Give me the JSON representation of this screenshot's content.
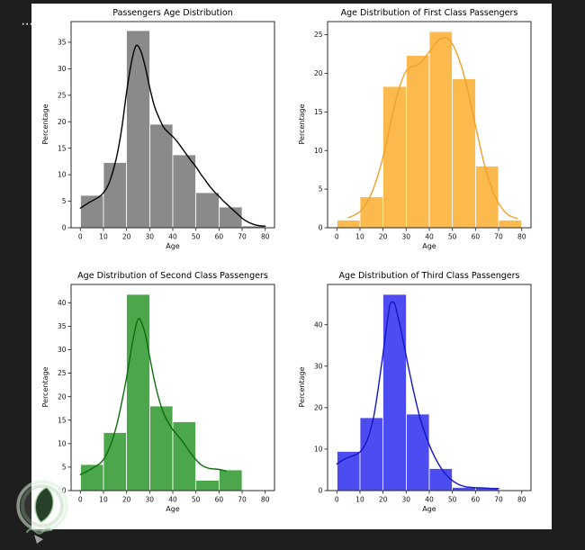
{
  "window": {
    "background_color": "#1e1e1e",
    "figure_background": "#ffffff",
    "ellipsis_mark": "···"
  },
  "chart_data": [
    {
      "type": "bar",
      "subtype": "histogram-with-kde",
      "title": "Passengers Age Distribution",
      "xlabel": "Age",
      "ylabel": "Percentage",
      "bar_color": "#8a8a8a",
      "kde_color": "#000000",
      "bin_edges": [
        0,
        10,
        20,
        30,
        40,
        50,
        60,
        70,
        80
      ],
      "values": [
        6.1,
        12.3,
        37.2,
        19.5,
        13.8,
        6.6,
        3.9,
        0.35
      ],
      "xticks": [
        0,
        10,
        20,
        30,
        40,
        50,
        60,
        70,
        80
      ],
      "yticks": [
        0,
        5,
        10,
        15,
        20,
        25,
        30,
        35
      ],
      "xlim": [
        -4,
        84
      ],
      "ylim": [
        0,
        38.9
      ],
      "grid": false,
      "legend": "none",
      "kde": [
        [
          0,
          3.7
        ],
        [
          4,
          4.8
        ],
        [
          8,
          5.8
        ],
        [
          10,
          6.6
        ],
        [
          12,
          8
        ],
        [
          14,
          10.5
        ],
        [
          16,
          14
        ],
        [
          18,
          19
        ],
        [
          20,
          25.5
        ],
        [
          22,
          31
        ],
        [
          24,
          34.3
        ],
        [
          26,
          33.5
        ],
        [
          28,
          30.5
        ],
        [
          30,
          26.5
        ],
        [
          32,
          23
        ],
        [
          34,
          20.8
        ],
        [
          36,
          19
        ],
        [
          38,
          18
        ],
        [
          40,
          17.2
        ],
        [
          42,
          16.2
        ],
        [
          44,
          15
        ],
        [
          46,
          13.8
        ],
        [
          48,
          12.6
        ],
        [
          50,
          11.5
        ],
        [
          52,
          10.2
        ],
        [
          54,
          9
        ],
        [
          56,
          7.8
        ],
        [
          58,
          6.8
        ],
        [
          60,
          5.9
        ],
        [
          62,
          5
        ],
        [
          64,
          4.2
        ],
        [
          66,
          3.4
        ],
        [
          68,
          2.6
        ],
        [
          70,
          1.8
        ],
        [
          72,
          1.2
        ],
        [
          74,
          0.8
        ],
        [
          76,
          0.5
        ],
        [
          78,
          0.35
        ],
        [
          80,
          0.3
        ]
      ]
    },
    {
      "type": "bar",
      "subtype": "histogram-with-kde",
      "title": "Age Distribution of First Class Passengers",
      "xlabel": "Age",
      "ylabel": "Percentage",
      "bar_color": "#fcba4e",
      "kde_color": "#efa02b",
      "bin_edges": [
        0,
        10,
        20,
        30,
        40,
        50,
        60,
        70,
        80
      ],
      "values": [
        1.0,
        4.0,
        18.3,
        22.3,
        25.4,
        19.3,
        8.0,
        1.0
      ],
      "xticks": [
        0,
        10,
        20,
        30,
        40,
        50,
        60,
        70,
        80
      ],
      "yticks": [
        0,
        5,
        10,
        15,
        20,
        25
      ],
      "xlim": [
        -4,
        84
      ],
      "ylim": [
        0,
        26.7
      ],
      "grid": false,
      "legend": "none",
      "kde": [
        [
          5,
          1.3
        ],
        [
          8,
          1.7
        ],
        [
          10,
          2.1
        ],
        [
          12,
          2.8
        ],
        [
          14,
          3.8
        ],
        [
          16,
          5.2
        ],
        [
          18,
          7
        ],
        [
          20,
          9.2
        ],
        [
          22,
          11.8
        ],
        [
          24,
          14.5
        ],
        [
          26,
          17
        ],
        [
          28,
          19
        ],
        [
          30,
          20.3
        ],
        [
          32,
          20.8
        ],
        [
          34,
          21
        ],
        [
          36,
          21.3
        ],
        [
          38,
          22
        ],
        [
          40,
          22.8
        ],
        [
          42,
          23.6
        ],
        [
          44,
          24.3
        ],
        [
          46,
          24.6
        ],
        [
          48,
          24.5
        ],
        [
          50,
          23.8
        ],
        [
          52,
          22.5
        ],
        [
          54,
          20.8
        ],
        [
          56,
          18.6
        ],
        [
          58,
          16
        ],
        [
          60,
          13.2
        ],
        [
          62,
          10.5
        ],
        [
          64,
          8
        ],
        [
          66,
          6
        ],
        [
          68,
          4.4
        ],
        [
          70,
          3.2
        ],
        [
          72,
          2.3
        ],
        [
          74,
          1.7
        ],
        [
          76,
          1.4
        ],
        [
          78,
          1.2
        ]
      ]
    },
    {
      "type": "bar",
      "subtype": "histogram-with-kde",
      "title": "Age Distribution of Second Class Passengers",
      "xlabel": "Age",
      "ylabel": "Percentage",
      "bar_color": "#4ca64c",
      "kde_color": "#0c6e0c",
      "bin_edges": [
        0,
        10,
        20,
        30,
        40,
        50,
        60,
        70,
        80
      ],
      "values": [
        5.6,
        12.4,
        41.8,
        18.0,
        14.7,
        2.2,
        4.4,
        0
      ],
      "xticks": [
        0,
        10,
        20,
        30,
        40,
        50,
        60,
        70,
        80
      ],
      "yticks": [
        0,
        5,
        10,
        15,
        20,
        25,
        30,
        35,
        40
      ],
      "xlim": [
        -4,
        84
      ],
      "ylim": [
        0,
        43.9
      ],
      "grid": false,
      "legend": "none",
      "kde": [
        [
          0,
          3.4
        ],
        [
          4,
          4.4
        ],
        [
          8,
          5.6
        ],
        [
          10,
          6.6
        ],
        [
          12,
          8.4
        ],
        [
          14,
          11
        ],
        [
          16,
          14.5
        ],
        [
          18,
          19
        ],
        [
          20,
          24
        ],
        [
          22,
          30
        ],
        [
          24,
          35
        ],
        [
          25,
          36.5
        ],
        [
          26,
          36.3
        ],
        [
          28,
          33.5
        ],
        [
          30,
          28.5
        ],
        [
          32,
          23.5
        ],
        [
          34,
          19.5
        ],
        [
          36,
          16.5
        ],
        [
          38,
          14.5
        ],
        [
          40,
          13
        ],
        [
          42,
          11.8
        ],
        [
          44,
          10.6
        ],
        [
          46,
          9.2
        ],
        [
          48,
          7.8
        ],
        [
          50,
          6.6
        ],
        [
          52,
          5.6
        ],
        [
          54,
          5
        ],
        [
          56,
          4.7
        ],
        [
          58,
          4.6
        ],
        [
          60,
          4.5
        ],
        [
          62,
          4.3
        ],
        [
          63,
          4.2
        ]
      ]
    },
    {
      "type": "bar",
      "subtype": "histogram-with-kde",
      "title": "Age Distribution of Third Class Passengers",
      "xlabel": "Age",
      "ylabel": "Percentage",
      "bar_color": "#4c4cf0",
      "kde_color": "#1515c8",
      "bin_edges": [
        0,
        10,
        20,
        30,
        40,
        50,
        60,
        70,
        80
      ],
      "values": [
        9.4,
        17.6,
        47.3,
        18.4,
        5.3,
        0.8,
        0.6,
        0
      ],
      "xticks": [
        0,
        10,
        20,
        30,
        40,
        50,
        60,
        70,
        80
      ],
      "yticks": [
        0,
        10,
        20,
        30,
        40
      ],
      "xlim": [
        -4,
        84
      ],
      "ylim": [
        0,
        49.7
      ],
      "grid": false,
      "legend": "none",
      "kde": [
        [
          0,
          6.4
        ],
        [
          3,
          7.5
        ],
        [
          6,
          8.2
        ],
        [
          8,
          8.6
        ],
        [
          10,
          9.3
        ],
        [
          12,
          10.8
        ],
        [
          14,
          13.5
        ],
        [
          16,
          18
        ],
        [
          18,
          25
        ],
        [
          20,
          33
        ],
        [
          22,
          41.5
        ],
        [
          23,
          44.8
        ],
        [
          24,
          45.5
        ],
        [
          25,
          45
        ],
        [
          26,
          43
        ],
        [
          28,
          38
        ],
        [
          30,
          32.5
        ],
        [
          32,
          27
        ],
        [
          34,
          22
        ],
        [
          36,
          17.5
        ],
        [
          38,
          14
        ],
        [
          40,
          11
        ],
        [
          42,
          8.5
        ],
        [
          44,
          6.4
        ],
        [
          46,
          4.7
        ],
        [
          48,
          3.4
        ],
        [
          50,
          2.4
        ],
        [
          52,
          1.7
        ],
        [
          54,
          1.2
        ],
        [
          56,
          0.9
        ],
        [
          58,
          0.8
        ],
        [
          60,
          0.7
        ],
        [
          62,
          0.65
        ],
        [
          64,
          0.6
        ],
        [
          66,
          0.55
        ],
        [
          68,
          0.5
        ],
        [
          70,
          0.5
        ]
      ]
    }
  ]
}
